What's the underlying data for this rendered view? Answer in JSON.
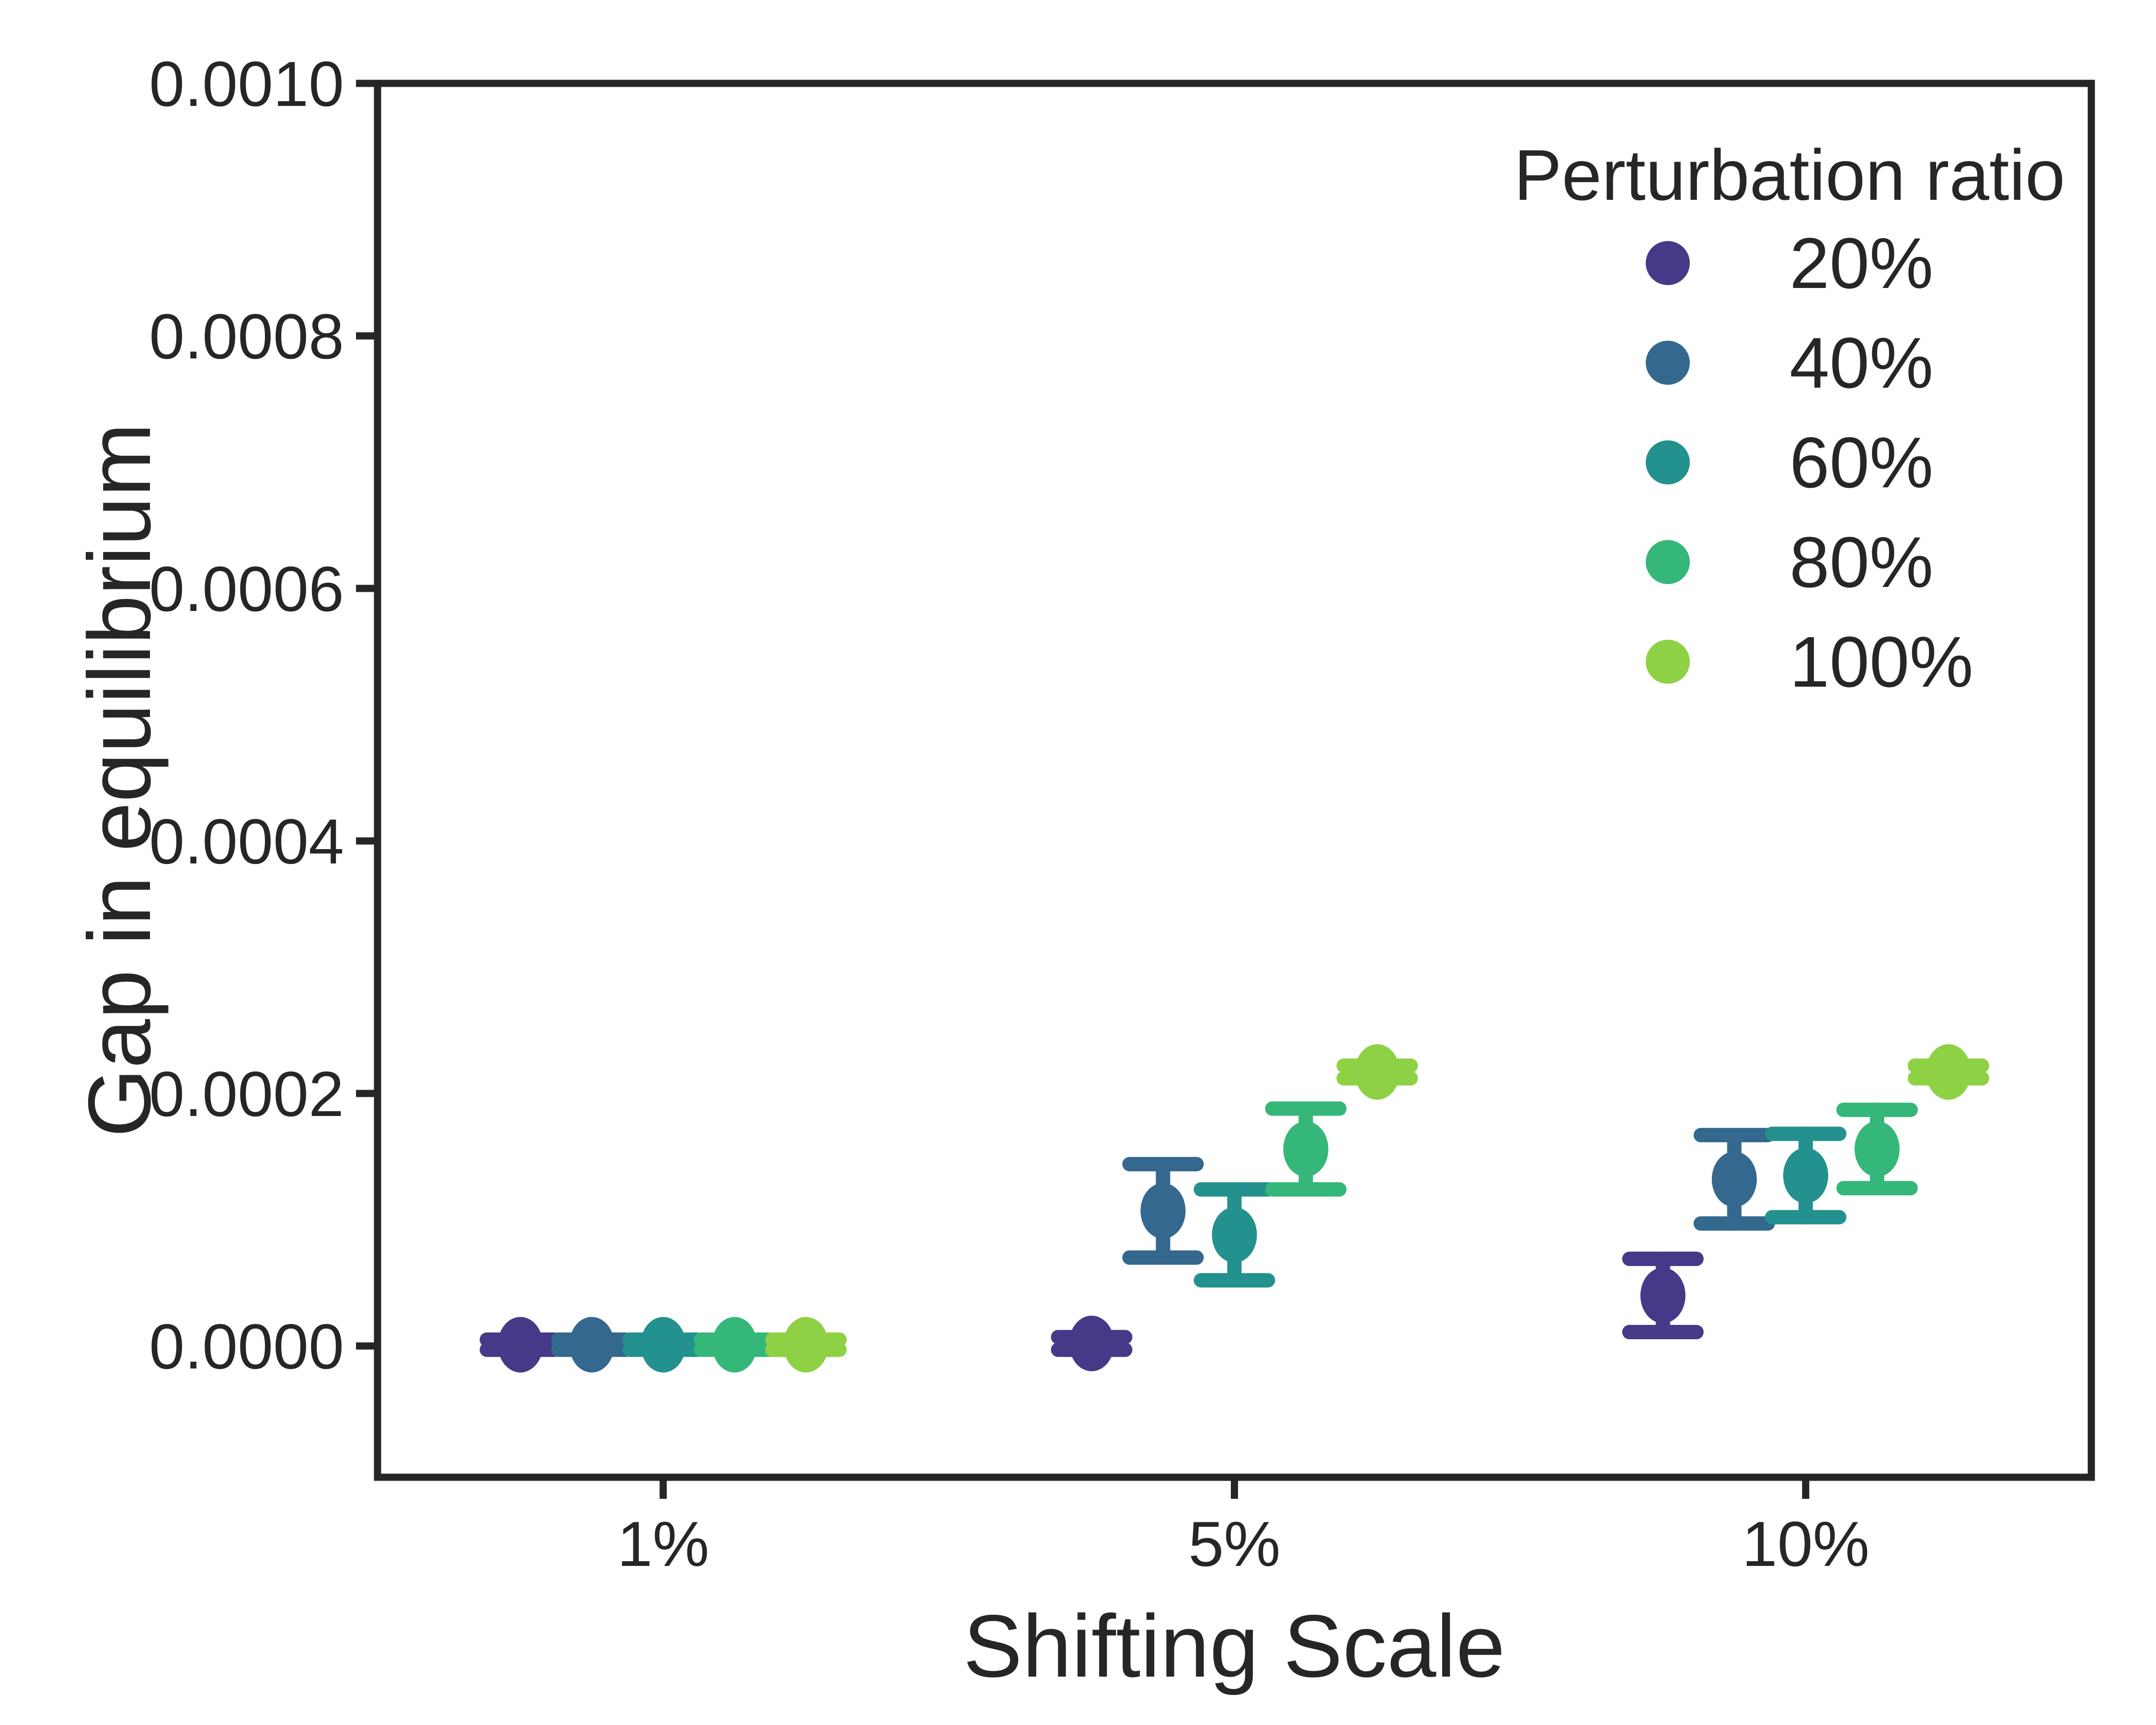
{
  "chart_data": {
    "type": "scatter",
    "title": "",
    "xlabel": "Shifting Scale",
    "ylabel": "Gap in equilibrium",
    "categories": [
      "1%",
      "5%",
      "10%"
    ],
    "legend": {
      "title": "Perturbation ratio",
      "position": "upper right",
      "entries": [
        "20%",
        "40%",
        "60%",
        "80%",
        "100%"
      ]
    },
    "ylim": [
      -0.000104,
      0.001
    ],
    "grid": false,
    "axis_color": "#262626",
    "y_ticks": [
      {
        "value": 0.001,
        "label": "0.0010"
      },
      {
        "value": 0.0008,
        "label": "0.0008"
      },
      {
        "value": 0.0006,
        "label": "0.0006"
      },
      {
        "value": 0.0004,
        "label": "0.0004"
      },
      {
        "value": 0.0002,
        "label": "0.0002"
      },
      {
        "value": 0.0,
        "label": "0.0000"
      }
    ],
    "series": [
      {
        "name": "20%",
        "color": "#453a87",
        "values": [
          1e-06,
          2e-06,
          4e-05
        ],
        "errors": [
          4e-06,
          5e-06,
          2.9e-05
        ]
      },
      {
        "name": "40%",
        "color": "#34688e",
        "values": [
          1e-06,
          0.000107,
          0.000132
        ],
        "errors": [
          4e-06,
          3.7e-05,
          3.5e-05
        ]
      },
      {
        "name": "60%",
        "color": "#23918d",
        "values": [
          1e-06,
          8.8e-05,
          0.000135
        ],
        "errors": [
          4e-06,
          3.6e-05,
          3.3e-05
        ]
      },
      {
        "name": "80%",
        "color": "#35b779",
        "values": [
          1e-06,
          0.000156,
          0.000156
        ],
        "errors": [
          4e-06,
          3.2e-05,
          3.1e-05
        ]
      },
      {
        "name": "100%",
        "color": "#8ed145",
        "values": [
          1e-06,
          0.000217,
          0.000217
        ],
        "errors": [
          4e-06,
          5e-06,
          5e-06
        ]
      }
    ]
  }
}
